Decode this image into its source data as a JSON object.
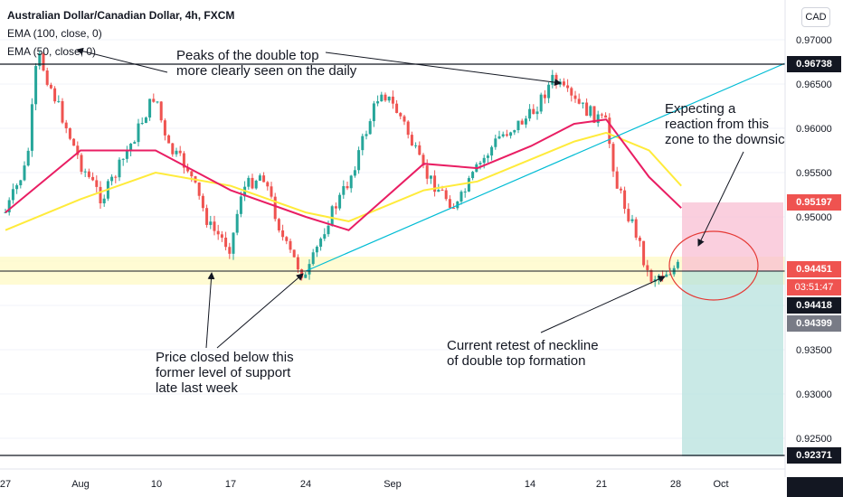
{
  "header": {
    "symbol": "Australian Dollar/Canadian Dollar, 4h, FXCM",
    "ema100": "EMA (100, close, 0)",
    "ema50": "EMA (50, close, 0)",
    "currency": "CAD"
  },
  "y_ticks": [
    "0.97000",
    "0.96500",
    "0.96000",
    "0.95500",
    "0.95000",
    "0.93500",
    "0.93000",
    "0.92500"
  ],
  "x_ticks": [
    "27",
    "Aug",
    "10",
    "17",
    "24",
    "Sep",
    "14",
    "21",
    "28",
    "Oct"
  ],
  "price_labels": {
    "top_line": "0.96738",
    "stop": "0.95197",
    "last": "0.94451",
    "countdown": "03:51:47",
    "level_a": "0.94418",
    "level_b": "0.94399",
    "target": "0.92371"
  },
  "annotations": {
    "peaks_1": "Peaks of the double top",
    "peaks_2": "more clearly seen on the daily",
    "expect_1": "Expecting a",
    "expect_2": "reaction from this",
    "expect_3": "zone to the downsic",
    "closed_1": "Price closed below this",
    "closed_2": "former level of support",
    "closed_3": "late last week",
    "retest_1": "Current retest of neckline",
    "retest_2": "of double top formation"
  },
  "colors": {
    "up": "#26a69a",
    "down": "#ef5350",
    "ema50": "#e91e63",
    "ema100": "#ffeb3b",
    "trendline": "#00bcd4",
    "stop_zone": "#f8bbd0",
    "target_zone": "#b2dfdb",
    "support_zone": "#fff9c4",
    "ellipse": "#e53935"
  },
  "chart_data": {
    "type": "candlestick",
    "title": "Australian Dollar/Canadian Dollar, 4h, FXCM",
    "ylim": [
      0.9215,
      0.9735
    ],
    "close_path": [
      {
        "x": "Jul 27",
        "y": 0.9505
      },
      {
        "x": "Jul 29",
        "y": 0.956
      },
      {
        "x": "Jul 30",
        "y": 0.9685
      },
      {
        "x": "Aug 3",
        "y": 0.956
      },
      {
        "x": "Aug 5",
        "y": 0.952
      },
      {
        "x": "Aug 7",
        "y": 0.9565
      },
      {
        "x": "Aug 10",
        "y": 0.964
      },
      {
        "x": "Aug 11",
        "y": 0.958
      },
      {
        "x": "Aug 13",
        "y": 0.9555
      },
      {
        "x": "Aug 15",
        "y": 0.949
      },
      {
        "x": "Aug 17",
        "y": 0.9465
      },
      {
        "x": "Aug 18",
        "y": 0.953
      },
      {
        "x": "Aug 20",
        "y": 0.955
      },
      {
        "x": "Aug 22",
        "y": 0.947
      },
      {
        "x": "Aug 24",
        "y": 0.943
      },
      {
        "x": "Aug 26",
        "y": 0.9495
      },
      {
        "x": "Aug 28",
        "y": 0.954
      },
      {
        "x": "Aug 31",
        "y": 0.9645
      },
      {
        "x": "Sep 2",
        "y": 0.961
      },
      {
        "x": "Sep 4",
        "y": 0.955
      },
      {
        "x": "Sep 7",
        "y": 0.951
      },
      {
        "x": "Sep 9",
        "y": 0.9555
      },
      {
        "x": "Sep 11",
        "y": 0.959
      },
      {
        "x": "Sep 14",
        "y": 0.9615
      },
      {
        "x": "Sep 16",
        "y": 0.9655
      },
      {
        "x": "Sep 18",
        "y": 0.963
      },
      {
        "x": "Sep 21",
        "y": 0.9605
      },
      {
        "x": "Sep 22",
        "y": 0.9535
      },
      {
        "x": "Sep 24",
        "y": 0.9475
      },
      {
        "x": "Sep 25",
        "y": 0.943
      },
      {
        "x": "Sep 28",
        "y": 0.9445
      }
    ],
    "ema50": [
      {
        "x": "Jul 27",
        "y": 0.9505
      },
      {
        "x": "Aug 3",
        "y": 0.9575
      },
      {
        "x": "Aug 10",
        "y": 0.9575
      },
      {
        "x": "Aug 17",
        "y": 0.953
      },
      {
        "x": "Aug 24",
        "y": 0.95
      },
      {
        "x": "Aug 28",
        "y": 0.9485
      },
      {
        "x": "Sep 4",
        "y": 0.956
      },
      {
        "x": "Sep 9",
        "y": 0.9555
      },
      {
        "x": "Sep 14",
        "y": 0.958
      },
      {
        "x": "Sep 18",
        "y": 0.9605
      },
      {
        "x": "Sep 21",
        "y": 0.961
      },
      {
        "x": "Sep 25",
        "y": 0.9545
      },
      {
        "x": "Sep 28",
        "y": 0.951
      }
    ],
    "ema100": [
      {
        "x": "Jul 27",
        "y": 0.9485
      },
      {
        "x": "Aug 3",
        "y": 0.952
      },
      {
        "x": "Aug 10",
        "y": 0.955
      },
      {
        "x": "Aug 17",
        "y": 0.9535
      },
      {
        "x": "Aug 24",
        "y": 0.9505
      },
      {
        "x": "Aug 28",
        "y": 0.9495
      },
      {
        "x": "Sep 4",
        "y": 0.953
      },
      {
        "x": "Sep 9",
        "y": 0.954
      },
      {
        "x": "Sep 14",
        "y": 0.9565
      },
      {
        "x": "Sep 18",
        "y": 0.9585
      },
      {
        "x": "Sep 21",
        "y": 0.9595
      },
      {
        "x": "Sep 25",
        "y": 0.9575
      },
      {
        "x": "Sep 28",
        "y": 0.9535
      }
    ],
    "horizontal_levels": [
      0.96738,
      0.94451,
      0.92371
    ],
    "support_zone": [
      0.94265,
      0.946
    ],
    "stop_zone": [
      0.94451,
      0.95197
    ],
    "target_zone": [
      0.92371,
      0.94451
    ]
  }
}
